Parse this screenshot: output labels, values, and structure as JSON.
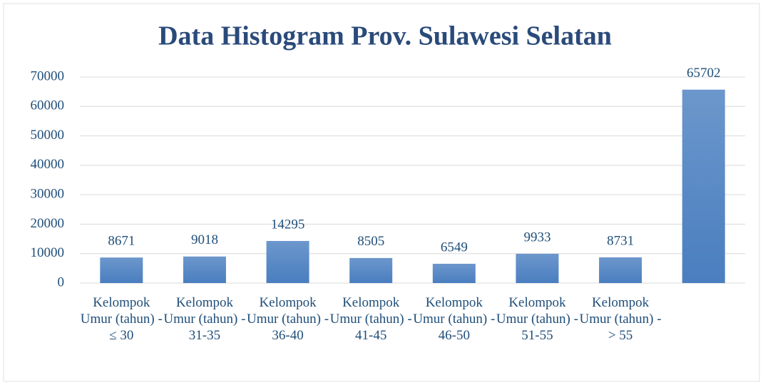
{
  "chart_data": {
    "type": "bar",
    "title": "Data Histogram Prov. Sulawesi Selatan",
    "categories": [
      "Kelompok Umur (tahun) - ≤ 30",
      "Kelompok Umur (tahun) - 31-35",
      "Kelompok Umur (tahun) - 36-40",
      "Kelompok Umur (tahun) - 41-45",
      "Kelompok Umur (tahun) - 46-50",
      "Kelompok Umur (tahun) - 51-55",
      "Kelompok Umur (tahun) - > 55",
      null
    ],
    "values": [
      8671,
      9018,
      14295,
      8505,
      6549,
      9933,
      8731,
      65702
    ],
    "color": "#4a7ebf",
    "ylim": [
      0,
      70000
    ],
    "yticks": [
      0,
      10000,
      20000,
      30000,
      40000,
      50000,
      60000,
      70000
    ],
    "grid": true
  }
}
